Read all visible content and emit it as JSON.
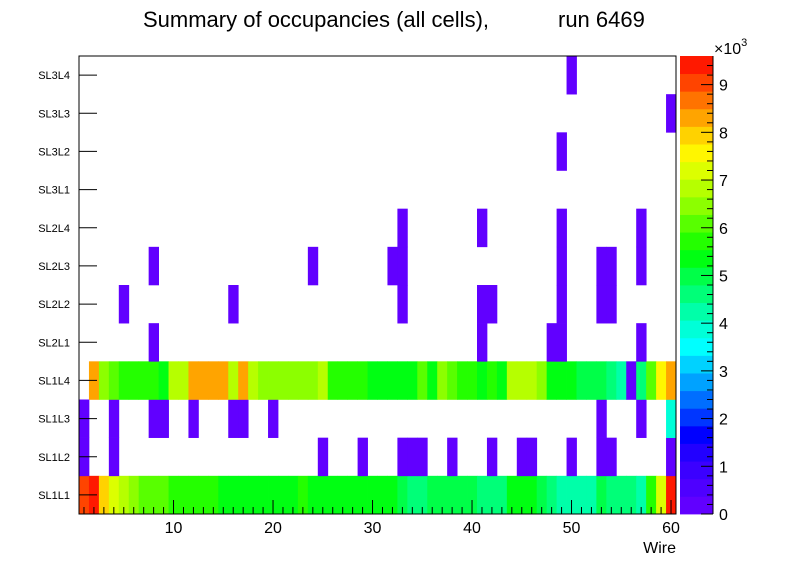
{
  "chart_data": {
    "type": "heatmap",
    "title": "Summary of occupancies (all cells),",
    "run_label": "run 6469",
    "xlabel": "Wire",
    "ylabel": "",
    "xlim": [
      0.5,
      60.5
    ],
    "x_ticks": [
      10,
      20,
      30,
      40,
      50,
      60
    ],
    "y_categories": [
      "SL1L1",
      "SL1L2",
      "SL1L3",
      "SL1L4",
      "SL2L1",
      "SL2L2",
      "SL2L3",
      "SL2L4",
      "SL3L1",
      "SL3L2",
      "SL3L3",
      "SL3L4"
    ],
    "z_range": [
      0,
      9600
    ],
    "colorbar_ticks": [
      "0",
      "1",
      "2",
      "3",
      "4",
      "5",
      "6",
      "7",
      "8",
      "9"
    ],
    "colorbar_exponent_base": "×10",
    "colorbar_exponent_power": "3",
    "rows": {
      "SL1L1": [
        9000,
        9400,
        8000,
        7300,
        6900,
        6300,
        6200,
        6200,
        6100,
        5900,
        5900,
        5800,
        5700,
        5600,
        5500,
        5500,
        5500,
        5400,
        5400,
        5300,
        5300,
        5400,
        5600,
        5400,
        5500,
        5300,
        5200,
        5200,
        5300,
        5200,
        5200,
        5200,
        4900,
        4700,
        4700,
        5000,
        5000,
        5000,
        5000,
        5000,
        4700,
        4600,
        4600,
        5300,
        5400,
        5300,
        5000,
        4600,
        4400,
        4300,
        4200,
        4300,
        5000,
        4700,
        4600,
        4500,
        4400,
        5700,
        7300,
        9500
      ],
      "SL1L2": [
        300,
        0,
        0,
        300,
        0,
        0,
        0,
        0,
        0,
        0,
        0,
        0,
        0,
        0,
        0,
        0,
        0,
        0,
        0,
        0,
        0,
        0,
        0,
        0,
        300,
        0,
        0,
        0,
        300,
        0,
        0,
        0,
        300,
        300,
        300,
        0,
        0,
        300,
        0,
        0,
        0,
        300,
        0,
        0,
        300,
        300,
        0,
        0,
        0,
        300,
        0,
        0,
        300,
        300,
        0,
        0,
        0,
        0,
        0,
        300
      ],
      "SL1L3": [
        300,
        0,
        0,
        300,
        0,
        0,
        0,
        300,
        300,
        0,
        0,
        300,
        0,
        0,
        0,
        300,
        300,
        0,
        0,
        300,
        0,
        0,
        0,
        0,
        0,
        0,
        0,
        0,
        0,
        0,
        0,
        0,
        0,
        0,
        0,
        0,
        0,
        0,
        0,
        0,
        0,
        0,
        0,
        0,
        0,
        0,
        0,
        0,
        0,
        0,
        0,
        0,
        300,
        0,
        0,
        0,
        300,
        0,
        0,
        3900
      ],
      "SL1L4": [
        0,
        8300,
        6500,
        6200,
        5700,
        5700,
        5700,
        5700,
        5300,
        6800,
        6700,
        8200,
        8200,
        8200,
        8200,
        7000,
        8200,
        6800,
        6400,
        6400,
        6400,
        6400,
        6400,
        6400,
        6800,
        5600,
        5600,
        5600,
        5600,
        5300,
        5300,
        5300,
        5300,
        5300,
        6000,
        5400,
        6500,
        6000,
        5700,
        5600,
        5200,
        5800,
        5300,
        7000,
        7000,
        7000,
        6600,
        5300,
        5500,
        5500,
        4900,
        4800,
        4800,
        4500,
        4300,
        300,
        4500,
        6000,
        7600,
        8300
      ]
    },
    "sparse_rows": {
      "SL2L1": [
        8,
        41,
        48,
        49,
        57
      ],
      "SL2L2": [
        5,
        16,
        33,
        41,
        42,
        49,
        53,
        54
      ],
      "SL2L3": [
        8,
        24,
        32,
        33,
        49,
        53,
        54,
        57
      ],
      "SL2L4": [
        33,
        41,
        49,
        57
      ],
      "SL3L1": [],
      "SL3L2": [
        49
      ],
      "SL3L3": [
        60
      ],
      "SL3L4": [
        50
      ]
    },
    "sparse_value": 300
  }
}
